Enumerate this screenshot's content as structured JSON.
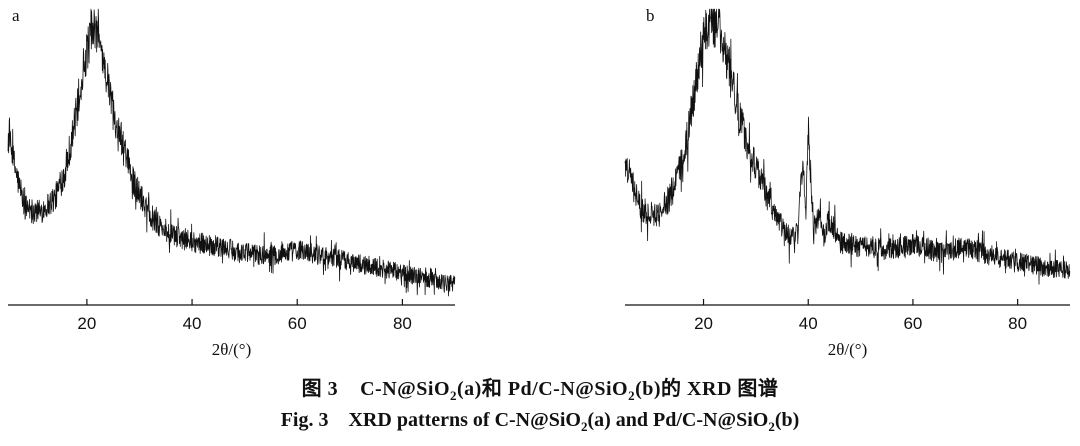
{
  "chart_data": [
    {
      "type": "line",
      "panel_label": "a",
      "xlabel": "2θ/(°)",
      "xlim": [
        5,
        90
      ],
      "xticks": [
        20,
        40,
        60,
        80
      ],
      "series": [
        {
          "x": [
            5,
            8,
            11,
            14,
            16,
            18,
            19,
            20,
            21,
            22,
            23,
            24,
            26,
            28,
            30,
            33,
            36,
            40,
            45,
            50,
            55,
            60,
            65,
            70,
            75,
            80,
            85,
            90
          ],
          "y": [
            0.58,
            0.34,
            0.32,
            0.37,
            0.47,
            0.66,
            0.78,
            0.88,
            0.95,
            0.93,
            0.86,
            0.76,
            0.6,
            0.47,
            0.38,
            0.29,
            0.24,
            0.22,
            0.2,
            0.18,
            0.17,
            0.19,
            0.17,
            0.15,
            0.13,
            0.11,
            0.09,
            0.07
          ]
        }
      ]
    },
    {
      "type": "line",
      "panel_label": "b",
      "xlabel": "2θ/(°)",
      "xlim": [
        5,
        90
      ],
      "xticks": [
        20,
        40,
        60,
        80
      ],
      "series": [
        {
          "x": [
            5,
            8,
            11,
            14,
            16,
            18,
            19,
            20,
            21,
            22,
            23,
            24,
            25,
            27,
            29,
            31,
            33,
            35,
            36,
            37,
            38,
            38.5,
            39,
            39.5,
            40,
            40.5,
            41,
            42,
            43,
            44,
            46,
            50,
            55,
            60,
            65,
            70,
            75,
            80,
            85,
            90
          ],
          "y": [
            0.5,
            0.33,
            0.31,
            0.38,
            0.5,
            0.7,
            0.82,
            0.92,
            0.97,
            0.98,
            0.95,
            0.88,
            0.8,
            0.64,
            0.52,
            0.43,
            0.33,
            0.27,
            0.24,
            0.23,
            0.25,
            0.4,
            0.52,
            0.3,
            0.62,
            0.4,
            0.26,
            0.3,
            0.24,
            0.3,
            0.22,
            0.2,
            0.19,
            0.21,
            0.18,
            0.2,
            0.17,
            0.15,
            0.13,
            0.12
          ]
        }
      ]
    }
  ],
  "captions": {
    "cn_prefix": "图 3",
    "cn_text_1": "C-N@SiO",
    "cn_sub_1": "2",
    "cn_text_2": "(a)和 Pd/C-N@SiO",
    "cn_sub_2": "2",
    "cn_text_3": "(b)的 XRD 图谱",
    "en_prefix": "Fig. 3",
    "en_text_1": "XRD patterns of C-N@SiO",
    "en_sub_1": "2",
    "en_text_2": "(a)  and Pd/C-N@SiO",
    "en_sub_2": "2",
    "en_text_3": "(b)"
  }
}
